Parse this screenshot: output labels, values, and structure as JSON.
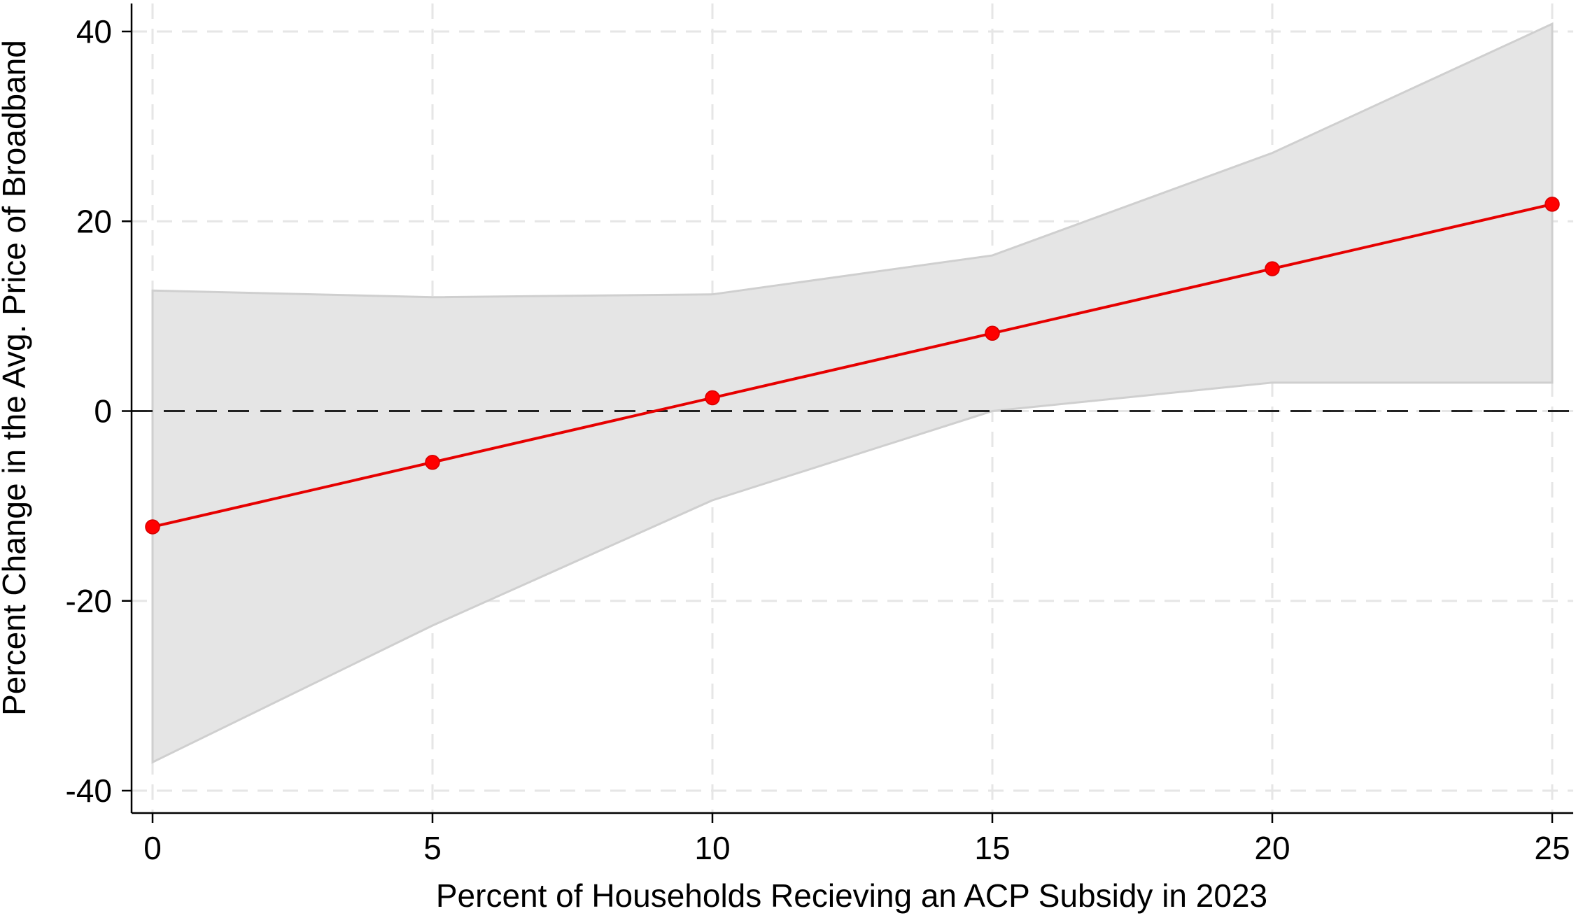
{
  "chart_data": {
    "type": "line",
    "title": "",
    "xlabel": "Percent of Households Recieving an ACP Subsidy in 2023",
    "ylabel": "Percent Change in the Avg. Price of Broadband",
    "xlim": [
      0,
      25
    ],
    "ylim": [
      -40,
      40
    ],
    "x_ticks": [
      0,
      5,
      10,
      15,
      20,
      25
    ],
    "y_ticks": [
      -40,
      -20,
      0,
      20,
      40
    ],
    "x_tick_labels": [
      "0",
      "5",
      "10",
      "15",
      "20",
      "25"
    ],
    "y_tick_labels": [
      "-40",
      "-20",
      "0",
      "20",
      "40"
    ],
    "grid": true,
    "reference_line_y": 0,
    "series": [
      {
        "x": [
          0,
          5,
          10,
          15,
          20,
          25
        ],
        "values": [
          -12.2,
          -5.4,
          1.4,
          8.2,
          15.0,
          21.8
        ],
        "ci_lower": [
          -37.0,
          -22.6,
          -9.4,
          0.0,
          3.0,
          3.0
        ],
        "ci_upper": [
          12.7,
          12.0,
          12.3,
          16.4,
          27.2,
          40.8
        ]
      }
    ],
    "colors": {
      "line": "#e60000",
      "marker": "#ff0000",
      "ci_fill": "#e5e5e5",
      "ci_edge": "#cfcfcf",
      "grid": "#e6e6e6",
      "reference": "#000000"
    }
  }
}
